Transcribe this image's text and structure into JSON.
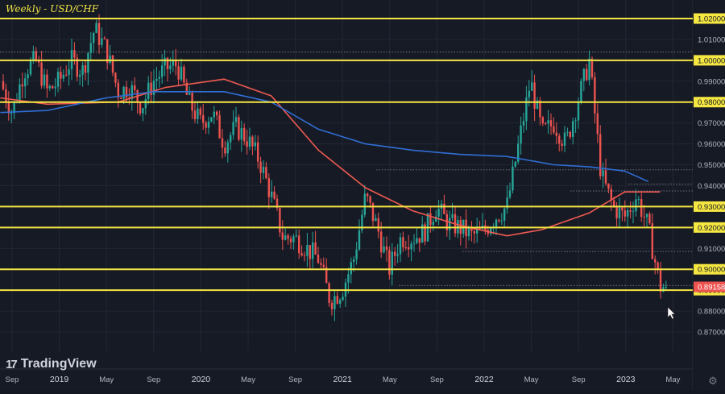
{
  "header": {
    "title": "Weekly - USD/CHF",
    "brand": "TradingView",
    "brand_mark": "17"
  },
  "colors": {
    "background": "#161a25",
    "grid": "#232734",
    "up": "#26a69a",
    "down": "#ef5350",
    "level": "#f5e642",
    "ma_fast": "#f05a4f",
    "ma_slow": "#2f6fd6",
    "axis_text": "#b2b5be",
    "last_price_bg": "#ef5350"
  },
  "price_axis": {
    "labels": [
      "1.02000",
      "1.01000",
      "1.00000",
      "0.99000",
      "0.98000",
      "0.97000",
      "0.96000",
      "0.95000",
      "0.94000",
      "0.93000",
      "0.92000",
      "0.91000",
      "0.90000",
      "0.89000",
      "0.88000",
      "0.87000"
    ],
    "highlighted": [
      "1.02000",
      "1.00000",
      "0.98000",
      "0.93000",
      "0.92000",
      "0.90000",
      "0.89000"
    ],
    "last_price": "0.89158"
  },
  "time_axis": {
    "labels": [
      "Sep",
      "2019",
      "May",
      "Sep",
      "2020",
      "May",
      "Sep",
      "2021",
      "May",
      "Sep",
      "2022",
      "May",
      "Sep",
      "2023",
      "May"
    ]
  },
  "chart_data": {
    "type": "candlestick",
    "title": "Weekly - USD/CHF",
    "xlabel": "",
    "ylabel": "",
    "ylim": [
      0.865,
      1.0235
    ],
    "xlim": [
      "2018-08",
      "2023-05"
    ],
    "horizontal_levels": [
      1.02,
      1.0,
      0.98,
      0.93,
      0.92,
      0.9,
      0.89
    ],
    "last_price": 0.89158,
    "moving_averages": [
      {
        "name": "MA fast (red)",
        "points": [
          [
            "2018-08",
            0.982
          ],
          [
            "2018-12",
            0.979
          ],
          [
            "2019-06",
            0.98
          ],
          [
            "2019-10",
            0.987
          ],
          [
            "2020-03",
            0.991
          ],
          [
            "2020-07",
            0.983
          ],
          [
            "2020-11",
            0.957
          ],
          [
            "2021-03",
            0.939
          ],
          [
            "2021-07",
            0.928
          ],
          [
            "2021-11",
            0.921
          ],
          [
            "2022-03",
            0.916
          ],
          [
            "2022-06",
            0.919
          ],
          [
            "2022-10",
            0.927
          ],
          [
            "2023-01",
            0.937
          ],
          [
            "2023-04",
            0.937
          ]
        ]
      },
      {
        "name": "MA slow (blue)",
        "points": [
          [
            "2018-08",
            0.975
          ],
          [
            "2018-12",
            0.976
          ],
          [
            "2019-05",
            0.982
          ],
          [
            "2019-09",
            0.985
          ],
          [
            "2020-03",
            0.985
          ],
          [
            "2020-07",
            0.98
          ],
          [
            "2020-11",
            0.967
          ],
          [
            "2021-03",
            0.96
          ],
          [
            "2021-07",
            0.957
          ],
          [
            "2021-11",
            0.955
          ],
          [
            "2022-03",
            0.954
          ],
          [
            "2022-07",
            0.95
          ],
          [
            "2022-10",
            0.949
          ],
          [
            "2023-01",
            0.947
          ],
          [
            "2023-03",
            0.942
          ]
        ]
      }
    ],
    "close_path": [
      [
        "2018-08",
        0.99
      ],
      [
        "2018-09",
        0.975
      ],
      [
        "2018-10",
        0.995
      ],
      [
        "2018-11",
        1.0
      ],
      [
        "2018-12",
        0.985
      ],
      [
        "2019-01",
        0.99
      ],
      [
        "2019-02",
        1.0
      ],
      [
        "2019-03",
        0.995
      ],
      [
        "2019-04",
        1.015
      ],
      [
        "2019-05",
        1.005
      ],
      [
        "2019-06",
        0.985
      ],
      [
        "2019-07",
        0.987
      ],
      [
        "2019-08",
        0.978
      ],
      [
        "2019-09",
        0.99
      ],
      [
        "2019-10",
        0.996
      ],
      [
        "2019-11",
        0.998
      ],
      [
        "2019-12",
        0.98
      ],
      [
        "2020-01",
        0.97
      ],
      [
        "2020-02",
        0.975
      ],
      [
        "2020-03",
        0.96
      ],
      [
        "2020-04",
        0.968
      ],
      [
        "2020-05",
        0.962
      ],
      [
        "2020-06",
        0.952
      ],
      [
        "2020-07",
        0.935
      ],
      [
        "2020-08",
        0.915
      ],
      [
        "2020-09",
        0.915
      ],
      [
        "2020-10",
        0.91
      ],
      [
        "2020-11",
        0.905
      ],
      [
        "2020-12",
        0.885
      ],
      [
        "2021-01",
        0.89
      ],
      [
        "2021-02",
        0.905
      ],
      [
        "2021-03",
        0.935
      ],
      [
        "2021-04",
        0.92
      ],
      [
        "2021-05",
        0.9
      ],
      [
        "2021-06",
        0.915
      ],
      [
        "2021-07",
        0.915
      ],
      [
        "2021-08",
        0.918
      ],
      [
        "2021-09",
        0.93
      ],
      [
        "2021-10",
        0.922
      ],
      [
        "2021-11",
        0.92
      ],
      [
        "2021-12",
        0.916
      ],
      [
        "2022-01",
        0.918
      ],
      [
        "2022-02",
        0.925
      ],
      [
        "2022-03",
        0.93
      ],
      [
        "2022-04",
        0.96
      ],
      [
        "2022-05",
        0.99
      ],
      [
        "2022-06",
        0.965
      ],
      [
        "2022-07",
        0.97
      ],
      [
        "2022-08",
        0.96
      ],
      [
        "2022-09",
        0.98
      ],
      [
        "2022-10",
        1.0
      ],
      [
        "2022-11",
        0.945
      ],
      [
        "2022-12",
        0.93
      ],
      [
        "2023-01",
        0.925
      ],
      [
        "2023-02",
        0.935
      ],
      [
        "2023-03",
        0.92
      ],
      [
        "2023-04",
        0.8916
      ]
    ]
  }
}
